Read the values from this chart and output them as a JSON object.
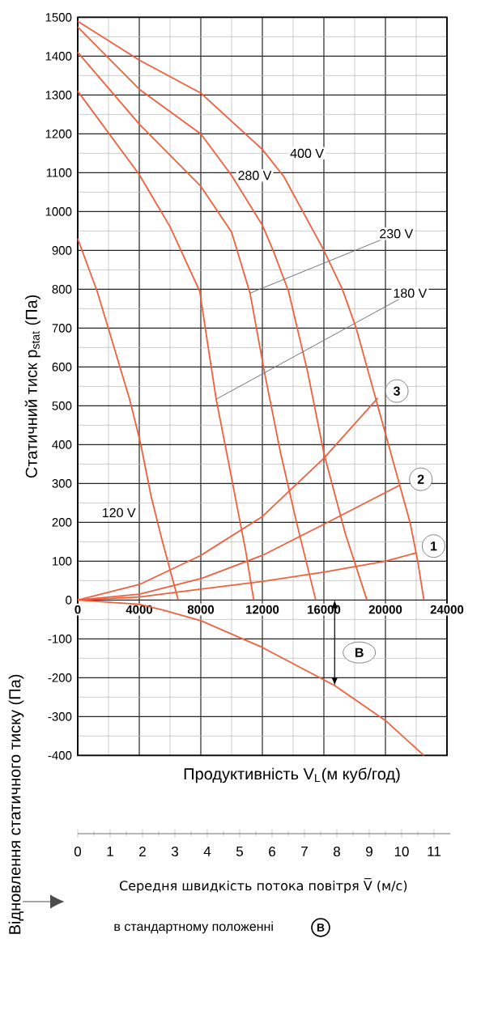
{
  "chart_data": {
    "type": "line",
    "ylabel": "Статичний тиск p$_{stat}$ (Па)",
    "xlabel": "Продуктивність V$_{L}$(м куб/год)",
    "x2label": "Середня швидкість потока повітря V̅ (м/с)",
    "xlim": [
      0,
      24000
    ],
    "xticks": [
      0,
      4000,
      8000,
      12000,
      16000,
      20000,
      24000
    ],
    "ylim": [
      -400,
      1500
    ],
    "yticks": [
      -400,
      -300,
      -200,
      -100,
      0,
      100,
      200,
      300,
      400,
      500,
      600,
      700,
      800,
      900,
      1000,
      1100,
      1200,
      1300,
      1400,
      1500
    ],
    "x2lim": [
      0,
      11.5
    ],
    "x2ticks": [
      0,
      1,
      2,
      3,
      4,
      5,
      6,
      7,
      8,
      9,
      10,
      11
    ],
    "grid": true,
    "marker": "none",
    "line_style": "solid",
    "series": [
      {
        "name": "400 V",
        "color": "#f0603c",
        "x": [
          0,
          4000,
          8000,
          12000,
          13400,
          16000,
          17200,
          18100,
          19500,
          20200,
          20900,
          21600,
          22100,
          22500
        ],
        "values": [
          1490,
          1390,
          1305,
          1160,
          1090,
          900,
          800,
          700,
          500,
          400,
          300,
          200,
          100,
          0
        ]
      },
      {
        "name": "280 V",
        "color": "#f0603c",
        "x": [
          0,
          4000,
          8000,
          10000,
          12000,
          12700,
          13700,
          14950,
          16000,
          17400,
          18800
        ],
        "values": [
          1475,
          1315,
          1200,
          1093,
          965,
          900,
          795,
          586,
          378,
          170,
          0
        ]
      },
      {
        "name": "230 V",
        "color": "#f0603c",
        "x": [
          0,
          4000,
          8000,
          10000,
          11200,
          12140,
          13190,
          14240,
          15470
        ],
        "values": [
          1410,
          1225,
          1065,
          947,
          790,
          586,
          378,
          197,
          0
        ]
      },
      {
        "name": "180 V",
        "color": "#f0603c",
        "x": [
          0,
          4000,
          6000,
          7930,
          8460,
          9000,
          10030,
          10910,
          11440
        ],
        "values": [
          1310,
          1095,
          961,
          795,
          656,
          517,
          308,
          128,
          0
        ]
      },
      {
        "name": "120 V",
        "color": "#f0603c",
        "x": [
          0,
          1260,
          2320,
          3370,
          4070,
          4770,
          5470,
          6530
        ],
        "values": [
          930,
          795,
          656,
          517,
          406,
          267,
          156,
          0
        ]
      },
      {
        "name": "3",
        "color": "#f0603c",
        "x": [
          0,
          4000,
          8000,
          12000,
          16000,
          19500
        ],
        "values": [
          0,
          40,
          115,
          215,
          365,
          520
        ]
      },
      {
        "name": "2",
        "color": "#f0603c",
        "x": [
          0,
          4000,
          8000,
          12000,
          16000,
          20900
        ],
        "values": [
          0,
          15,
          55,
          115,
          195,
          295
        ]
      },
      {
        "name": "1",
        "color": "#f0603c",
        "x": [
          0,
          4000,
          8000,
          12000,
          16000,
          20000,
          21960
        ],
        "values": [
          0,
          8,
          28,
          48,
          72,
          100,
          121
        ]
      },
      {
        "color": "#f0603c",
        "x": [
          0,
          4000,
          5470,
          8000,
          12000,
          16700,
          20000,
          22500
        ],
        "values": [
          0,
          -11,
          -25,
          -53,
          -122,
          -220,
          -310,
          -400
        ]
      }
    ],
    "annotations": [
      "Відновлення статичного тиску (Па)",
      {
        "text": "B",
        "x": 16700,
        "y": -220
      },
      "в стандартному положенні",
      "B"
    ]
  }
}
